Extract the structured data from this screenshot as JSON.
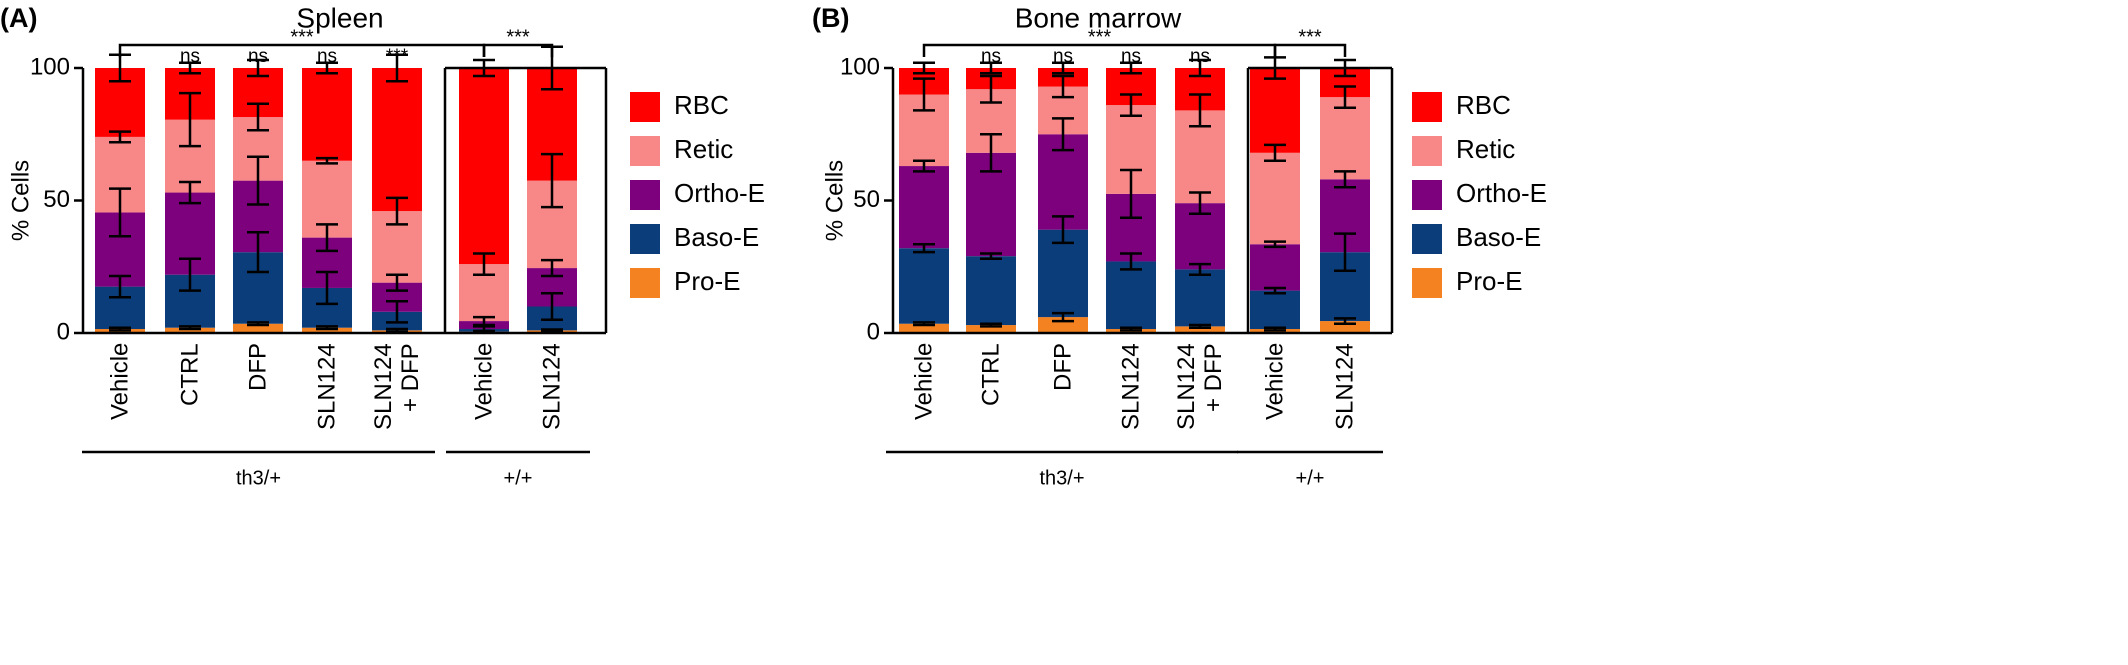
{
  "chart_data": [
    {
      "type": "stacked_bar",
      "panel_label": "(A)",
      "title": "Spleen",
      "y_label": "% Cells",
      "categories": [
        "Vehicle",
        "CTRL",
        "DFP",
        "SLN124",
        "SLN124\n+ DFP",
        "Vehicle",
        "SLN124"
      ],
      "ylim": [
        0,
        100
      ],
      "yticks": [
        0,
        50,
        100
      ],
      "series": [
        {
          "name": "Pro-E",
          "color": "#f58220",
          "values": [
            1.5,
            2,
            3.5,
            2,
            1,
            0.5,
            1
          ],
          "errors": [
            0.5,
            0.5,
            0.5,
            0.5,
            0.5,
            0.3,
            0.3
          ]
        },
        {
          "name": "Baso-E",
          "color": "#0b3d7a",
          "values": [
            16,
            20,
            27,
            15,
            7,
            1,
            9
          ],
          "errors": [
            4,
            6,
            7.5,
            6,
            4,
            1,
            5
          ]
        },
        {
          "name": "Ortho-E",
          "color": "#7d007d",
          "values": [
            28,
            31,
            27,
            19,
            11,
            3,
            14.5
          ],
          "errors": [
            9,
            4,
            9,
            5,
            3,
            1.5,
            3
          ]
        },
        {
          "name": "Retic",
          "color": "#f88888",
          "values": [
            28.5,
            27.5,
            24,
            29,
            27,
            21.5,
            33
          ],
          "errors": [
            2,
            10,
            5,
            1,
            5,
            4,
            10
          ]
        },
        {
          "name": "RBC",
          "color": "#ff0000",
          "values": [
            26,
            19.5,
            18.5,
            35,
            54,
            74,
            42.5
          ],
          "errors": [
            5,
            2,
            3,
            2,
            5,
            3,
            8
          ]
        }
      ],
      "bar_annotations": [
        null,
        "ns",
        "ns",
        "ns",
        "***",
        null,
        null
      ],
      "brackets": [
        {
          "label": "***",
          "between": [
            0,
            5
          ]
        },
        {
          "label": "***",
          "between": [
            5,
            6
          ]
        }
      ],
      "groups": [
        {
          "label": "th3/+",
          "categories": [
            0,
            4
          ]
        },
        {
          "label": "+/+",
          "categories": [
            5,
            6
          ]
        }
      ]
    },
    {
      "type": "stacked_bar",
      "panel_label": "(B)",
      "title": "Bone marrow",
      "y_label": "% Cells",
      "categories": [
        "Vehicle",
        "CTRL",
        "DFP",
        "SLN124",
        "SLN124\n+ DFP",
        "Vehicle",
        "SLN124"
      ],
      "ylim": [
        0,
        100
      ],
      "yticks": [
        0,
        50,
        100
      ],
      "series": [
        {
          "name": "Pro-E",
          "color": "#f58220",
          "values": [
            3.5,
            3,
            6,
            1.5,
            2.5,
            1.5,
            4.5
          ],
          "errors": [
            0.5,
            0.5,
            1.5,
            0.5,
            0.5,
            0.5,
            1
          ]
        },
        {
          "name": "Baso-E",
          "color": "#0b3d7a",
          "values": [
            28.5,
            26,
            33,
            25.5,
            21.5,
            14.5,
            26
          ],
          "errors": [
            1.5,
            1,
            5,
            3,
            2,
            1,
            7
          ]
        },
        {
          "name": "Ortho-E",
          "color": "#7d007d",
          "values": [
            31,
            39,
            36,
            25.5,
            25,
            17.5,
            27.5
          ],
          "errors": [
            2,
            7,
            6,
            9,
            4,
            1,
            3
          ]
        },
        {
          "name": "Retic",
          "color": "#f88888",
          "values": [
            27,
            24,
            18,
            33.5,
            35,
            34.5,
            31
          ],
          "errors": [
            6,
            5,
            4,
            4,
            6,
            3,
            4
          ]
        },
        {
          "name": "RBC",
          "color": "#ff0000",
          "values": [
            10,
            8,
            7,
            14,
            16,
            32,
            11
          ],
          "errors": [
            2,
            2,
            2,
            2,
            3,
            4,
            3
          ]
        }
      ],
      "bar_annotations": [
        null,
        "ns",
        "ns",
        "ns",
        "ns",
        null,
        null
      ],
      "brackets": [
        {
          "label": "***",
          "between": [
            0,
            5
          ]
        },
        {
          "label": "***",
          "between": [
            5,
            6
          ]
        }
      ],
      "groups": [
        {
          "label": "th3/+",
          "categories": [
            0,
            4
          ]
        },
        {
          "label": "+/+",
          "categories": [
            5,
            6
          ]
        }
      ]
    }
  ]
}
